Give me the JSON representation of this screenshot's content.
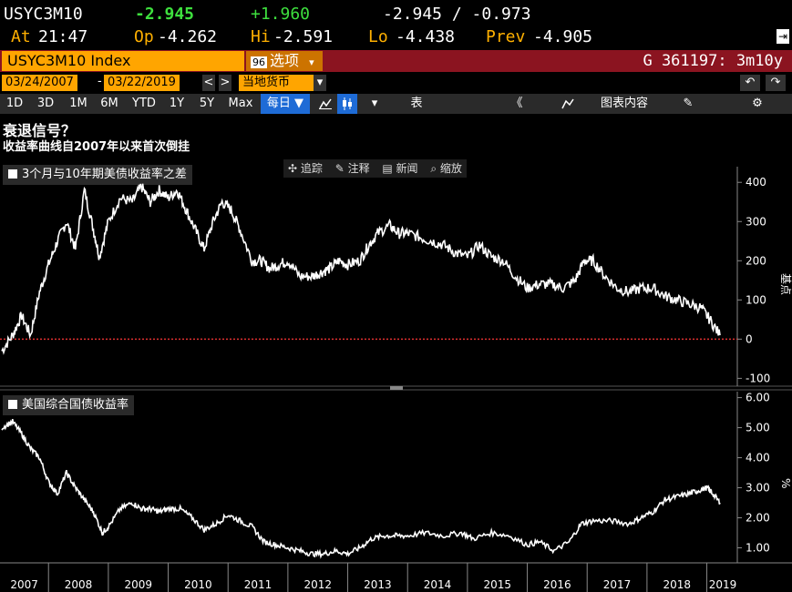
{
  "quote": {
    "ticker": "USYC3M10",
    "last": "-2.945",
    "change": "+1.960",
    "range": "-2.945 / -0.973",
    "at_label": "At",
    "at_time": "21:47",
    "op_label": "Op",
    "op_val": "-4.262",
    "hi_label": "Hi",
    "hi_val": "-2.591",
    "lo_label": "Lo",
    "lo_val": "-4.438",
    "prev_label": "Prev",
    "prev_val": "-4.905"
  },
  "security_bar": {
    "index_name": "USYC3M10 Index",
    "options_num": "96",
    "options_label": "选项",
    "options_arrow": "▾",
    "graph_id": "G 361197: 3m10y"
  },
  "date_bar": {
    "start": "03/24/2007",
    "sep": "-",
    "end": "03/22/2019",
    "prev": "<",
    "next": ">",
    "currency": "当地货币",
    "currency_arrow": "▾"
  },
  "toolbar": {
    "periods": [
      "1D",
      "3D",
      "1M",
      "6M",
      "YTD",
      "1Y",
      "5Y",
      "Max"
    ],
    "freq": "每日 ▼",
    "dropdown": "▾",
    "table": "表",
    "collapse": "《",
    "chart_content": "图表内容",
    "edit": "✎",
    "gear": "⚙",
    "undo": "↶",
    "redo": "↷"
  },
  "headings": {
    "title": "衰退信号？",
    "subtitle": "收益率曲线自2007年以来首次倒挂"
  },
  "chart_buttons": {
    "track": "✣ 追踪",
    "annotate": "✎ 注释",
    "news": "▤ 新闻",
    "zoom": "⌕ 缩放"
  },
  "colors": {
    "up": "#3ee03e",
    "label": "#ffb000",
    "title_bar": "#8b1420",
    "security": "#ffa500",
    "zero_line": "#e03030"
  },
  "chart_data": [
    {
      "type": "line",
      "legend": "3个月与10年期美债收益率之差",
      "ylabel": "基点",
      "ylim": [
        -120,
        440
      ],
      "yticks": [
        400,
        300,
        200,
        100,
        0,
        -100
      ],
      "zero_line": true,
      "series": [
        {
          "name": "3个月与10年期美债收益率之差",
          "x": [
            2007.22,
            2007.4,
            2007.55,
            2007.7,
            2007.85,
            2008.0,
            2008.15,
            2008.3,
            2008.45,
            2008.6,
            2008.75,
            2008.85,
            2009.0,
            2009.2,
            2009.4,
            2009.55,
            2009.7,
            2009.85,
            2010.0,
            2010.15,
            2010.3,
            2010.45,
            2010.6,
            2010.75,
            2010.9,
            2011.05,
            2011.2,
            2011.4,
            2011.55,
            2011.7,
            2011.85,
            2012.0,
            2012.2,
            2012.4,
            2012.55,
            2012.7,
            2012.85,
            2013.0,
            2013.2,
            2013.35,
            2013.5,
            2013.7,
            2013.85,
            2014.0,
            2014.2,
            2014.4,
            2014.6,
            2014.8,
            2015.0,
            2015.2,
            2015.4,
            2015.6,
            2015.8,
            2016.0,
            2016.2,
            2016.4,
            2016.6,
            2016.8,
            2016.95,
            2017.1,
            2017.3,
            2017.5,
            2017.7,
            2017.9,
            2018.1,
            2018.3,
            2018.5,
            2018.7,
            2018.9,
            2019.05,
            2019.22
          ],
          "values": [
            -30,
            10,
            60,
            10,
            120,
            190,
            250,
            300,
            230,
            380,
            280,
            210,
            300,
            360,
            350,
            390,
            350,
            380,
            360,
            380,
            330,
            280,
            230,
            300,
            350,
            330,
            280,
            200,
            200,
            180,
            190,
            200,
            160,
            160,
            170,
            180,
            200,
            190,
            200,
            240,
            270,
            290,
            270,
            270,
            260,
            250,
            240,
            220,
            210,
            240,
            210,
            200,
            160,
            130,
            140,
            140,
            130,
            150,
            200,
            200,
            160,
            130,
            120,
            130,
            130,
            110,
            100,
            90,
            80,
            50,
            10
          ]
        }
      ]
    },
    {
      "type": "line",
      "legend": "美国综合国债收益率",
      "ylabel": "%",
      "ylim": [
        0.5,
        6.2
      ],
      "yticks": [
        6.0,
        5.0,
        4.0,
        3.0,
        2.0,
        1.0
      ],
      "ytick_labels": [
        "6.00",
        "5.00",
        "4.00",
        "3.00",
        "2.00",
        "1.00"
      ],
      "xticks": [
        "2007",
        "2008",
        "2009",
        "2010",
        "2011",
        "2012",
        "2013",
        "2014",
        "2015",
        "2016",
        "2017",
        "2018",
        "2019"
      ],
      "series": [
        {
          "name": "美国综合国债收益率",
          "x": [
            2007.22,
            2007.4,
            2007.55,
            2007.7,
            2007.85,
            2008.0,
            2008.15,
            2008.3,
            2008.45,
            2008.6,
            2008.75,
            2008.9,
            2009.0,
            2009.2,
            2009.4,
            2009.55,
            2009.7,
            2009.85,
            2010.0,
            2010.2,
            2010.4,
            2010.6,
            2010.8,
            2011.0,
            2011.2,
            2011.4,
            2011.6,
            2011.8,
            2012.0,
            2012.2,
            2012.4,
            2012.6,
            2012.8,
            2013.0,
            2013.2,
            2013.4,
            2013.6,
            2013.8,
            2014.0,
            2014.3,
            2014.6,
            2014.9,
            2015.1,
            2015.4,
            2015.7,
            2016.0,
            2016.2,
            2016.45,
            2016.7,
            2016.9,
            2017.1,
            2017.4,
            2017.7,
            2017.9,
            2018.1,
            2018.3,
            2018.5,
            2018.7,
            2018.85,
            2019.0,
            2019.1,
            2019.22
          ],
          "values": [
            5.0,
            5.2,
            4.8,
            4.3,
            4.0,
            3.2,
            2.8,
            3.5,
            3.0,
            2.6,
            2.2,
            1.5,
            1.7,
            2.3,
            2.5,
            2.3,
            2.3,
            2.2,
            2.3,
            2.3,
            2.0,
            1.6,
            1.8,
            2.1,
            1.9,
            1.7,
            1.2,
            1.1,
            1.0,
            0.9,
            0.8,
            0.8,
            0.9,
            0.8,
            1.0,
            1.3,
            1.4,
            1.4,
            1.4,
            1.5,
            1.4,
            1.5,
            1.3,
            1.5,
            1.4,
            1.1,
            1.2,
            0.9,
            1.2,
            1.8,
            1.9,
            1.9,
            1.8,
            2.0,
            2.2,
            2.6,
            2.7,
            2.8,
            2.9,
            3.0,
            2.8,
            2.5
          ]
        }
      ]
    }
  ]
}
